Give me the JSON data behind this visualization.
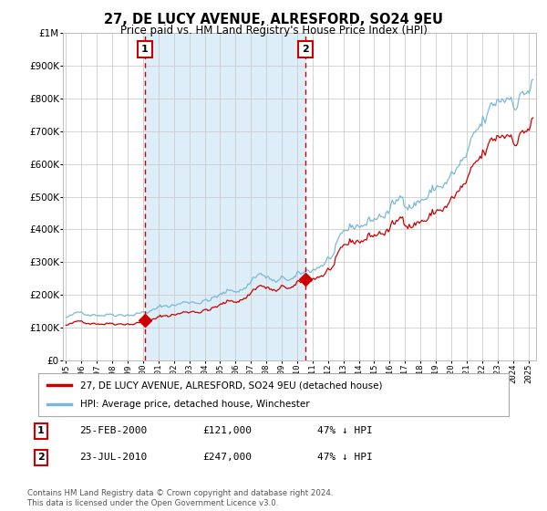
{
  "title": "27, DE LUCY AVENUE, ALRESFORD, SO24 9EU",
  "subtitle": "Price paid vs. HM Land Registry's House Price Index (HPI)",
  "hpi_label": "HPI: Average price, detached house, Winchester",
  "price_label": "27, DE LUCY AVENUE, ALRESFORD, SO24 9EU (detached house)",
  "footer": "Contains HM Land Registry data © Crown copyright and database right 2024.\nThis data is licensed under the Open Government Licence v3.0.",
  "sale1_date": "25-FEB-2000",
  "sale1_price": "£121,000",
  "sale1_info": "47% ↓ HPI",
  "sale2_date": "23-JUL-2010",
  "sale2_price": "£247,000",
  "sale2_info": "47% ↓ HPI",
  "sale1_year": 2000.12,
  "sale1_value": 121000,
  "sale2_year": 2010.55,
  "sale2_value": 247000,
  "ylim": [
    0,
    1000000
  ],
  "xlim_start": 1994.8,
  "xlim_end": 2025.5,
  "hpi_color": "#7ab8d8",
  "hpi_fill_color": "#ddeef8",
  "price_color": "#cc0000",
  "vline_color": "#cc0000",
  "grid_color": "#cccccc",
  "background_color": "#ffffff"
}
